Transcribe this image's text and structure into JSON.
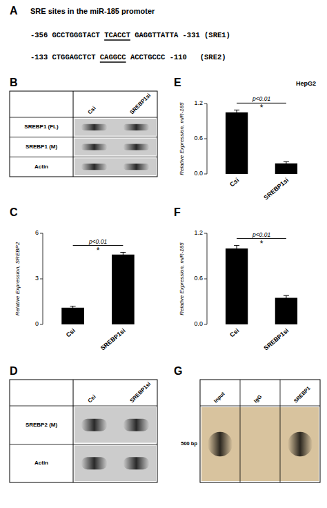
{
  "chart_data": [
    {
      "type": "text",
      "title": "A",
      "subtitle": "SRE sites in the miR-185 promoter",
      "annotations": [
        [
          "-356 GCCTGGGTACT",
          "TCACCT",
          "GAGGTTATTA -331 (SRE1)"
        ],
        [
          "-133 CTGGAGCTCT",
          "CAGGCC",
          "ACCTGCCC -110   (SRE2)"
        ]
      ]
    },
    {
      "type": "blot",
      "title": "B",
      "categories": [
        "Csi",
        "SREBP1si"
      ],
      "annotations": [
        "SREBP1 (FL)",
        "SREBP1 (M)",
        "Actin"
      ]
    },
    {
      "type": "bar",
      "title": "C",
      "categories": [
        "Csi",
        "SREBP1si"
      ],
      "values": [
        1.1,
        4.6
      ],
      "errors": [
        0.1,
        0.15
      ],
      "color": "#000000",
      "ylim": [
        0,
        6
      ],
      "yticks": [
        0,
        3,
        6
      ],
      "ylabel": "Relative Expression, SREBP2",
      "annotations": [
        "p<0.01",
        "*"
      ]
    },
    {
      "type": "blot",
      "title": "D",
      "categories": [
        "Csi",
        "SREBP1si"
      ],
      "annotations": [
        "SREBP2 (M)",
        "Actin"
      ]
    },
    {
      "type": "bar",
      "title": "E",
      "subtitle": "HepG2",
      "categories": [
        "Csi",
        "SREBP1si"
      ],
      "values": [
        1.05,
        0.18
      ],
      "errors": [
        0.04,
        0.03
      ],
      "color": "#000000",
      "ylim": [
        0,
        1.2
      ],
      "yticks": [
        {
          "value": 0,
          "label": "0.0"
        },
        0.6,
        1.2
      ],
      "ylabel": "Relative Expression, miR-185",
      "annotations": [
        "p<0.01",
        "*"
      ]
    },
    {
      "type": "bar",
      "title": "F",
      "categories": [
        "Csi",
        "SREBP1si"
      ],
      "values": [
        1.0,
        0.35
      ],
      "errors": [
        0.04,
        0.03
      ],
      "color": "#000000",
      "ylim": [
        0,
        1.2
      ],
      "yticks": [
        {
          "value": 0,
          "label": "0.0"
        },
        0.6,
        1.2
      ],
      "ylabel": "Relative Expression, miR-185",
      "annotations": [
        "p<0.01",
        "*"
      ]
    },
    {
      "type": "gel",
      "title": "G",
      "categories": [
        "Input",
        "IgG",
        "SREBP1"
      ],
      "annotations": [
        "500 bp"
      ]
    }
  ]
}
